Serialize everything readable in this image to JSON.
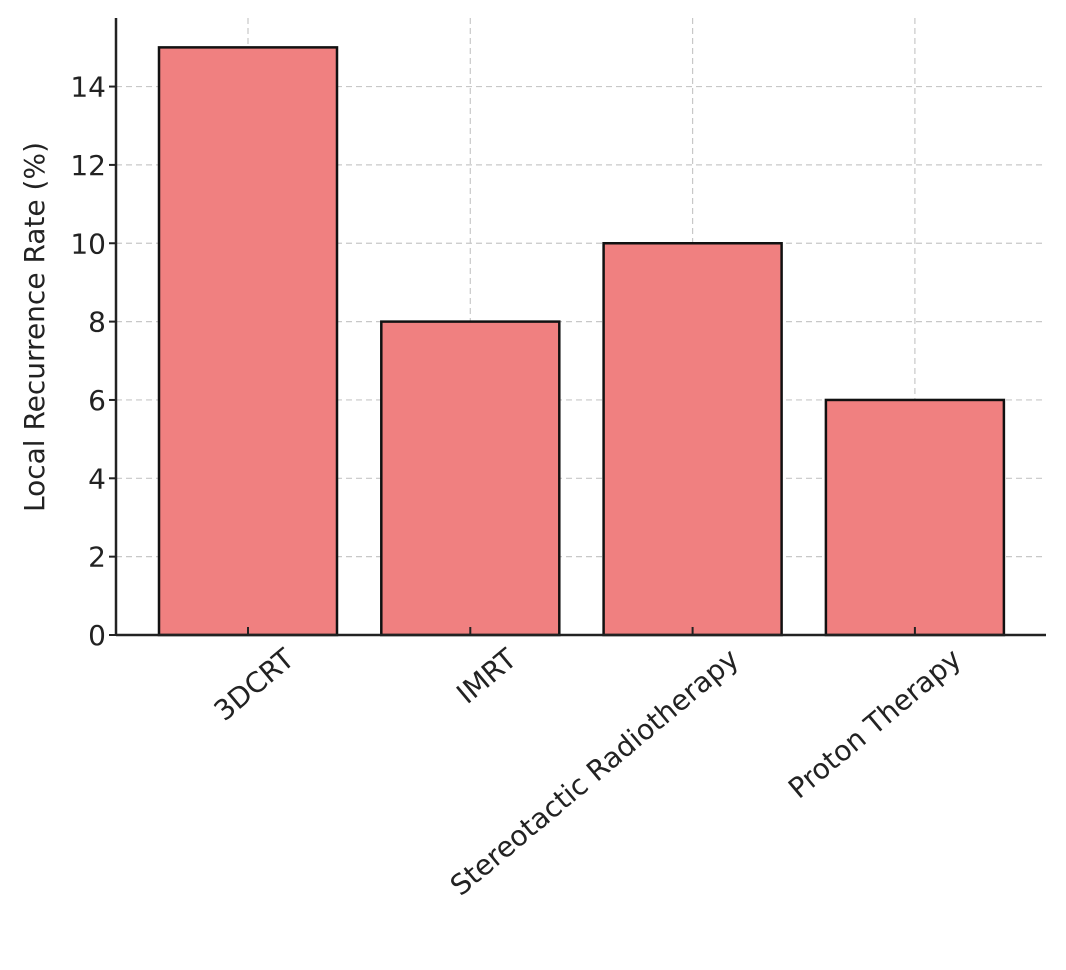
{
  "chart_data": {
    "type": "bar",
    "y_label": "Local Recurrence Rate (%)",
    "categories": [
      "3DCRT",
      "IMRT",
      "Stereotactic Radiotherapy",
      "Proton Therapy"
    ],
    "values": [
      15,
      8,
      10,
      6
    ],
    "color": "#f08080",
    "edge_color": "#111111",
    "ylim": [
      0,
      15.75
    ],
    "yticks": [
      0,
      2,
      4,
      6,
      8,
      10,
      12,
      14
    ],
    "grid": true
  }
}
